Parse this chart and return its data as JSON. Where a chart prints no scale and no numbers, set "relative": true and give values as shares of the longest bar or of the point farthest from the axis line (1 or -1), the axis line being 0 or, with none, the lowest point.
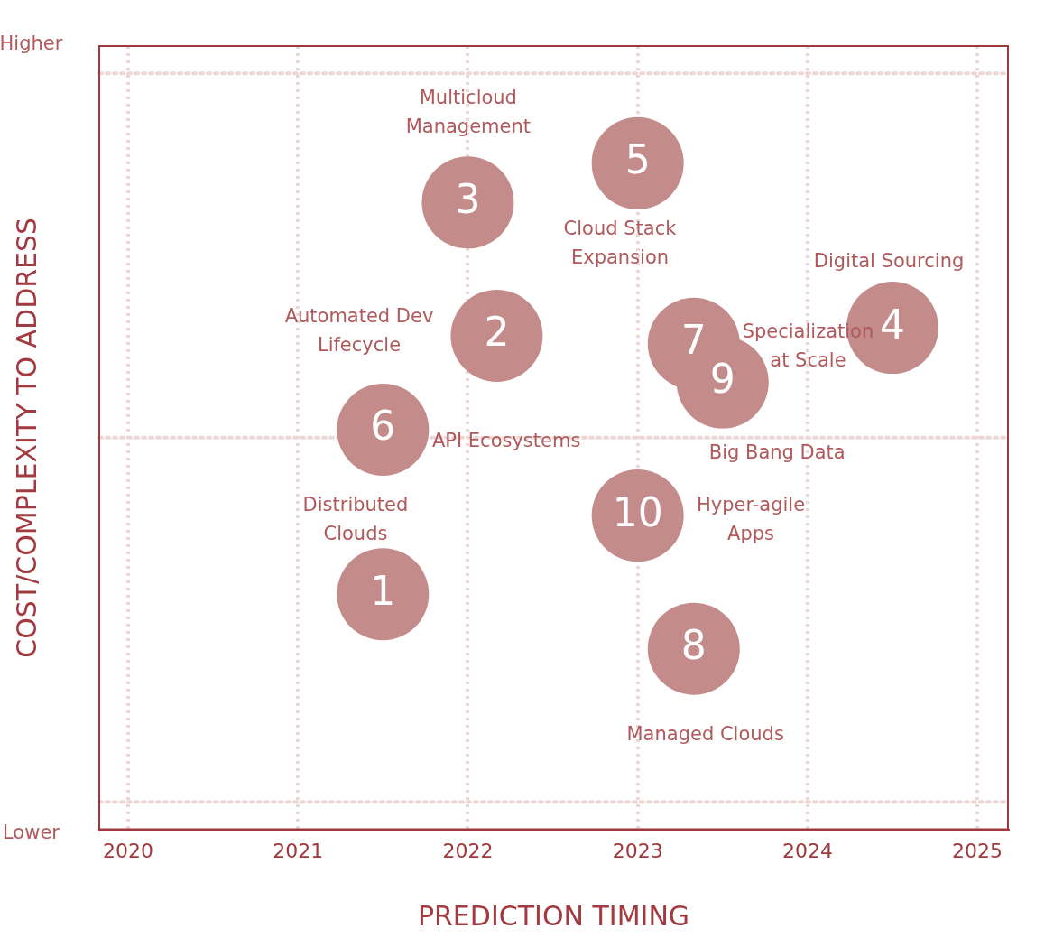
{
  "chart_data": {
    "type": "bubble",
    "xlabel": "PREDICTION TIMING",
    "ylabel": "COST/COMPLEXITY TO ADDRESS",
    "xlim": [
      2019.83,
      2025.18
    ],
    "xticks": [
      2020,
      2021,
      2022,
      2023,
      2024,
      2025
    ],
    "relative": true,
    "grid": "x",
    "line_style": "dotted",
    "series": [
      {
        "color": "#c48b8b",
        "x": [
          2021.5,
          2022.17,
          2022.0,
          2024.5,
          2023.0,
          2021.5,
          2023.33,
          2023.33,
          2023.5,
          2023.0
        ],
        "values": [
          0.353,
          0.741,
          0.941,
          0.753,
          1,
          0.6,
          0.729,
          0.271,
          0.671,
          0.471
        ],
        "sizes": [
          1,
          1,
          1,
          1,
          1,
          1,
          1,
          1,
          1,
          1
        ]
      }
    ],
    "ref_lines": [
      {
        "axis": "y",
        "value": 0.588,
        "color": "#ecd6d6",
        "line_style": "dotted"
      },
      {
        "axis": "y",
        "value": 1.135,
        "color": "#ecd6d6",
        "line_style": "dotted"
      },
      {
        "axis": "y",
        "value": 0.041,
        "color": "#ecd6d6",
        "line_style": "dotted"
      }
    ],
    "annotations": [
      {
        "text": "1",
        "x": 2021.5,
        "y": 0.353
      },
      {
        "text": "2",
        "x": 2022.17,
        "y": 0.741
      },
      {
        "text": "3",
        "x": 2022.0,
        "y": 0.941
      },
      {
        "text": "4",
        "x": 2024.5,
        "y": 0.753
      },
      {
        "text": "5",
        "x": 2023.0,
        "y": 1
      },
      {
        "text": "6",
        "x": 2021.5,
        "y": 0.6
      },
      {
        "text": "7",
        "x": 2023.33,
        "y": 0.729
      },
      {
        "text": "8",
        "x": 2023.33,
        "y": 0.271
      },
      {
        "text": "9",
        "x": 2023.5,
        "y": 0.671
      },
      {
        "text": "10",
        "x": 2023.0,
        "y": 0.471
      },
      "Higher",
      "Lower",
      "Multicloud\nManagement",
      "Cloud Stack\nExpansion",
      "Digital Sourcing",
      "Automated Dev\nLifecycle",
      "Specialization\nat Scale",
      "API Ecosystems",
      "Big Bang Data",
      "Distributed\nClouds",
      "Hyper-agile\nApps",
      "Managed Clouds"
    ]
  }
}
